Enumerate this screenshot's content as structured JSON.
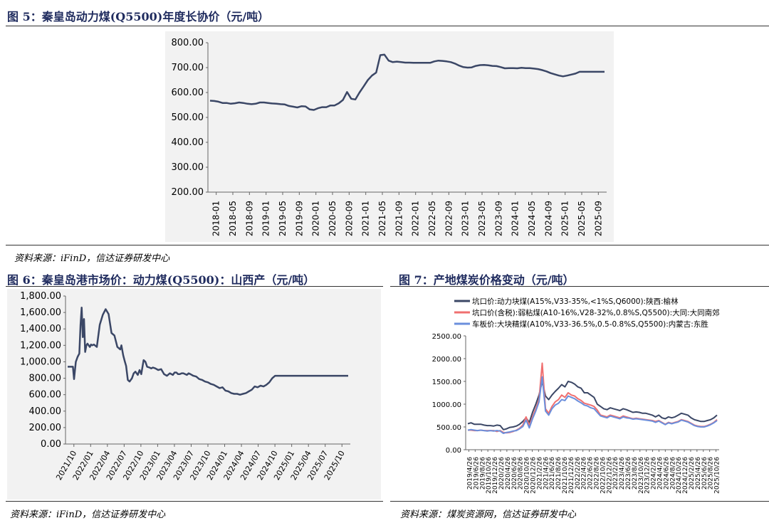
{
  "figures": [
    {
      "title": "图 5：秦皇岛动力煤(Q5500)年度长协价（元/吨）",
      "source": "资料来源：iFinD，信达证券研发中心"
    },
    {
      "title": "图 6：秦皇岛港市场价：动力煤(Q5500)：山西产（元/吨）",
      "source": "资料来源：iFinD，信达证券研发中心"
    },
    {
      "title": "图 7：产地煤炭价格变动（元/吨）",
      "source": "资料来源：煤炭资源网，信达证券研发中心"
    }
  ],
  "chart_data": [
    {
      "type": "line",
      "title": "",
      "ylim": [
        200,
        800
      ],
      "yticks": [
        "200.00",
        "300.00",
        "400.00",
        "500.00",
        "600.00",
        "700.00",
        "800.00"
      ],
      "xticks": [
        "2018-01",
        "2018-05",
        "2018-09",
        "2019-01",
        "2019-05",
        "2019-09",
        "2020-01",
        "2020-05",
        "2020-09",
        "2021-01",
        "2021-05",
        "2021-09",
        "2022-01",
        "2022-05",
        "2022-09",
        "2023-01",
        "2023-05",
        "2023-09",
        "2024-01",
        "2024-05",
        "2024-09",
        "2025-01",
        "2025-05",
        "2025-09"
      ],
      "grid": false,
      "color": "#3b4766",
      "series": [
        {
          "x": [
            0,
            1,
            2,
            3,
            4,
            5,
            6,
            7,
            8,
            9,
            10,
            11,
            12,
            13,
            14,
            15,
            16,
            17,
            18,
            19,
            20,
            21,
            22,
            23,
            24,
            25,
            26,
            27,
            28,
            29,
            30,
            31,
            32,
            33,
            34,
            35,
            36,
            37,
            38,
            39,
            40,
            41,
            42,
            43,
            44,
            45,
            46,
            47,
            48,
            49,
            50,
            51,
            52,
            53,
            54,
            55,
            56,
            57,
            58,
            59,
            60,
            61,
            62,
            63,
            64,
            65,
            66,
            67,
            68,
            69,
            70,
            71,
            72,
            73,
            74,
            75,
            76,
            77,
            78,
            79,
            80,
            81,
            82,
            83,
            84,
            85,
            86,
            87,
            88,
            89,
            90,
            91,
            92,
            93,
            94,
            95
          ],
          "values": [
            567,
            566,
            563,
            558,
            558,
            555,
            557,
            560,
            558,
            555,
            553,
            555,
            560,
            560,
            558,
            556,
            555,
            553,
            552,
            546,
            543,
            540,
            545,
            544,
            532,
            530,
            537,
            541,
            541,
            548,
            548,
            557,
            570,
            602,
            575,
            572,
            600,
            625,
            650,
            668,
            680,
            750,
            752,
            728,
            722,
            724,
            722,
            720,
            720,
            719,
            719,
            719,
            719,
            719,
            725,
            728,
            727,
            725,
            722,
            716,
            708,
            702,
            700,
            701,
            707,
            710,
            711,
            709,
            707,
            706,
            702,
            697,
            698,
            698,
            697,
            699,
            698,
            698,
            696,
            694,
            690,
            685,
            678,
            673,
            668,
            665,
            668,
            672,
            676,
            683,
            683,
            683,
            683,
            683,
            683,
            683
          ]
        }
      ]
    },
    {
      "type": "line",
      "title": "",
      "ylim": [
        0,
        1800
      ],
      "yticks": [
        "0.00",
        "200.00",
        "400.00",
        "600.00",
        "800.00",
        "1,000.00",
        "1,200.00",
        "1,400.00",
        "1,600.00",
        "1,800.00"
      ],
      "xticks": [
        "2021/10",
        "2022/01",
        "2022/04",
        "2022/07",
        "2022/10",
        "2023/01",
        "2023/04",
        "2023/07",
        "2023/10",
        "2024/01",
        "2024/04",
        "2024/07",
        "2024/10",
        "2025/01",
        "2025/04",
        "2025/07",
        "2025/10"
      ],
      "grid": false,
      "color": "#3b4766",
      "series": [
        {
          "x": [
            0,
            0.3,
            0.6,
            0.9,
            1.1,
            1.4,
            1.7,
            2.0,
            2.2,
            2.4,
            2.6,
            2.8,
            3.0,
            3.2,
            3.4,
            3.6,
            3.8,
            4.0,
            4.2,
            4.5,
            5.0,
            5.5,
            6.0,
            6.5,
            7.0,
            7.5,
            8.0,
            8.5,
            9.0,
            9.2,
            9.5,
            9.8,
            10.0,
            10.3,
            10.6,
            11.0,
            11.3,
            11.6,
            12.0,
            12.3,
            12.6,
            13.0,
            13.3,
            13.6,
            14.0,
            14.3,
            14.6,
            15.0,
            15.5,
            16.0,
            16.5,
            17.0,
            17.5,
            18.0,
            18.3,
            18.6,
            18.9,
            19.2,
            19.5,
            19.8,
            20.1,
            20.4,
            20.7,
            21.0,
            21.5,
            22.0,
            22.5,
            23.0,
            23.5,
            24.0,
            24.5,
            25.0,
            25.5,
            26.0,
            26.5,
            27.0,
            27.5,
            28.0,
            28.5,
            29.0,
            29.5,
            30.0,
            30.5,
            31.0,
            31.5,
            32.0,
            32.5,
            33.0,
            33.5,
            34.0,
            34.5,
            35.0,
            35.5,
            36.0,
            36.5,
            37.0,
            37.5,
            38.0,
            38.5,
            39.0,
            39.5,
            40.0,
            40.5,
            41.0,
            41.5,
            42.0,
            42.5,
            43.0,
            43.5,
            44.0,
            44.5,
            45.0,
            45.5,
            46.0,
            46.5,
            47.0,
            47.5,
            48.0
          ],
          "values": [
            940,
            940,
            940,
            940,
            790,
            1000,
            1060,
            1100,
            1450,
            1660,
            1300,
            1520,
            1120,
            1200,
            1220,
            1200,
            1180,
            1210,
            1200,
            1210,
            1180,
            1450,
            1570,
            1640,
            1580,
            1350,
            1320,
            1180,
            1150,
            1200,
            1080,
            1000,
            950,
            780,
            760,
            800,
            860,
            880,
            840,
            900,
            850,
            1020,
            1000,
            940,
            930,
            920,
            930,
            920,
            900,
            910,
            850,
            830,
            860,
            840,
            870,
            870,
            850,
            850,
            860,
            860,
            850,
            840,
            860,
            850,
            830,
            820,
            790,
            780,
            760,
            750,
            730,
            720,
            700,
            680,
            690,
            650,
            640,
            620,
            610,
            610,
            600,
            610,
            620,
            640,
            660,
            700,
            690,
            710,
            700,
            720,
            750,
            800,
            830,
            830,
            830,
            830,
            830,
            830,
            830,
            830,
            830,
            830,
            830,
            830,
            830,
            830,
            830,
            830,
            830,
            830,
            830,
            830,
            830,
            830,
            830,
            830,
            830,
            830
          ]
        }
      ]
    },
    {
      "type": "line",
      "title": "",
      "ylim": [
        0,
        2500
      ],
      "yticks": [
        "0.00",
        "500.00",
        "1000.00",
        "1500.00",
        "2000.00",
        "2500.00"
      ],
      "xticks": [
        "2019/4/26",
        "2019/6/26",
        "2019/8/26",
        "2019/10/26",
        "2019/12/26",
        "2020/2/26",
        "2020/4/26",
        "2020/6/26",
        "2020/8/26",
        "2020/10/26",
        "2020/12/26",
        "2021/2/26",
        "2021/4/26",
        "2021/6/26",
        "2021/8/26",
        "2021/10/26",
        "2021/12/26",
        "2022/2/26",
        "2022/4/26",
        "2022/6/26",
        "2022/8/26",
        "2022/10/26",
        "2022/12/26",
        "2023/2/26",
        "2023/4/26",
        "2023/6/26",
        "2023/8/26",
        "2023/10/26",
        "2023/12/26",
        "2024/2/26",
        "2024/4/26",
        "2024/6/26",
        "2024/8/26",
        "2024/10/26",
        "2024/12/26",
        "2025/2/26",
        "2025/4/26",
        "2025/6/26",
        "2025/8/26",
        "2025/10/26"
      ],
      "legend": "top",
      "grid": false,
      "series": [
        {
          "name": "坑口价:动力块煤(A15%,V33-35%,<1%S,Q6000):陕西:榆林",
          "color": "#3b4766",
          "values": [
            570,
            590,
            560,
            560,
            560,
            540,
            530,
            530,
            520,
            540,
            530,
            440,
            460,
            490,
            500,
            520,
            560,
            620,
            700,
            600,
            820,
            1000,
            1200,
            1500,
            1180,
            1100,
            1200,
            1280,
            1350,
            1430,
            1380,
            1500,
            1480,
            1440,
            1380,
            1350,
            1250,
            1250,
            1200,
            1150,
            1000,
            950,
            900,
            880,
            920,
            900,
            880,
            860,
            900,
            880,
            850,
            820,
            830,
            820,
            800,
            800,
            780,
            760,
            720,
            760,
            700,
            680,
            720,
            700,
            720,
            760,
            800,
            780,
            760,
            700,
            660,
            640,
            620,
            620,
            640,
            660,
            700,
            760
          ]
        },
        {
          "name": "坑口价(含税):弱粘煤(A10-16%,V28-32%,0.8%S,Q5500):大同:大同南郊",
          "color": "#f07070",
          "values": [
            430,
            430,
            420,
            420,
            430,
            420,
            420,
            420,
            420,
            400,
            420,
            380,
            370,
            380,
            400,
            430,
            470,
            540,
            720,
            530,
            720,
            900,
            1100,
            1900,
            900,
            800,
            950,
            1050,
            1100,
            1200,
            1150,
            1250,
            1200,
            1180,
            1120,
            1080,
            1020,
            1000,
            980,
            950,
            870,
            760,
            740,
            720,
            760,
            740,
            720,
            700,
            740,
            720,
            700,
            680,
            690,
            680,
            670,
            660,
            650,
            640,
            620,
            640,
            600,
            560,
            600,
            580,
            600,
            620,
            660,
            640,
            620,
            580,
            540,
            520,
            510,
            510,
            530,
            560,
            600,
            660
          ]
        },
        {
          "name": "车板价:大块精煤(A10%,V33-36.5%,0.5-0.8%S,Q5500):内蒙古:东胜",
          "color": "#6b8fdc",
          "values": [
            430,
            440,
            430,
            420,
            430,
            420,
            410,
            420,
            410,
            420,
            410,
            360,
            380,
            390,
            410,
            420,
            460,
            510,
            650,
            480,
            680,
            850,
            1050,
            1600,
            850,
            760,
            900,
            980,
            1020,
            1100,
            1080,
            1180,
            1150,
            1120,
            1070,
            1030,
            980,
            960,
            920,
            900,
            820,
            740,
            720,
            700,
            740,
            720,
            700,
            680,
            720,
            700,
            690,
            670,
            680,
            670,
            660,
            650,
            640,
            630,
            600,
            630,
            590,
            550,
            590,
            570,
            590,
            610,
            650,
            630,
            610,
            570,
            530,
            510,
            500,
            500,
            520,
            550,
            590,
            640
          ]
        }
      ]
    }
  ]
}
